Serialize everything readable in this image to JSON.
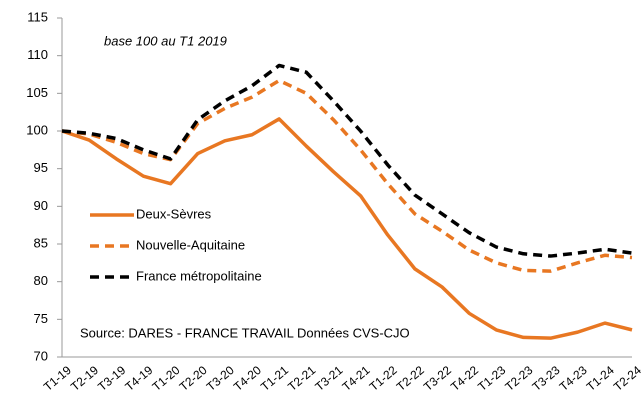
{
  "chart_data": {
    "type": "line",
    "annotation": "base 100  au T1 2019",
    "source": "Source: DARES - FRANCE TRAVAIL  Données CVS-CJO",
    "categories": [
      "T1-19",
      "T2-19",
      "T3-19",
      "T4-19",
      "T1-20",
      "T2-20",
      "T3-20",
      "T4-20",
      "T1-21",
      "T2-21",
      "T3-21",
      "T4-21",
      "T1-22",
      "T2-22",
      "T3-22",
      "T4-22",
      "T1-23",
      "T2-23",
      "T3-23",
      "T4-23",
      "T1-24",
      "T2-24"
    ],
    "series": [
      {
        "name": "Deux-Sèvres",
        "color": "#e87722",
        "dash": "solid",
        "values": [
          100,
          98.8,
          96.3,
          94,
          93,
          97,
          98.7,
          99.5,
          101.6,
          98,
          94.6,
          91.4,
          86.2,
          81.7,
          79.3,
          75.8,
          73.6,
          72.6,
          72.5,
          73.3,
          74.5,
          73.6
        ]
      },
      {
        "name": "Nouvelle-Aquitaine",
        "color": "#e87722",
        "dash": "dashed",
        "values": [
          100,
          99.6,
          98.5,
          97,
          96.2,
          101,
          103,
          104.5,
          106.7,
          105,
          101.5,
          97.5,
          93,
          89,
          86.7,
          84.2,
          82.5,
          81.5,
          81.4,
          82.5,
          83.5,
          83.2
        ]
      },
      {
        "name": "France métropolitaine",
        "color": "#000000",
        "dash": "dashed",
        "values": [
          100,
          99.7,
          99,
          97.5,
          96.3,
          101.5,
          104,
          106,
          108.7,
          107.8,
          104,
          100,
          95.5,
          91.5,
          89,
          86.5,
          84.6,
          83.7,
          83.4,
          83.8,
          84.3,
          83.8
        ]
      }
    ],
    "ylim": [
      70,
      115
    ],
    "yticks": [
      70,
      75,
      80,
      85,
      90,
      95,
      100,
      105,
      110,
      115
    ],
    "grid": false
  }
}
